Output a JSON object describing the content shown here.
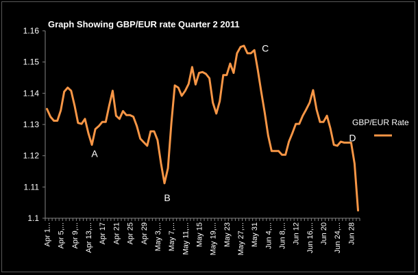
{
  "chart_data": {
    "type": "line",
    "title": "Graph Showing GBP/EUR rate Quarter 2 2011",
    "xlabel": "",
    "ylabel": "",
    "ylim": [
      1.1,
      1.16
    ],
    "yticks": [
      "1.1",
      "1.11",
      "1.12",
      "1.13",
      "1.14",
      "1.15",
      "1.16"
    ],
    "x_tick_labels": [
      "Apr 1...",
      "Apr 5,...",
      "Apr 9,...",
      "Apr 13,...",
      "Apr 17",
      "Apr 21",
      "Apr 25",
      "Apr 29",
      "May 3,...",
      "May 7,...",
      "May 11,...",
      "May 15",
      "May 19,...",
      "May 23",
      "May 27,...",
      "May 31",
      "Jun 4,...",
      "Jun 8,...",
      "Jun 12",
      "Jun 16,...",
      "Jun 20",
      "Jun 24,...",
      "Jun 28"
    ],
    "legend_position": "right",
    "grid": false,
    "series": [
      {
        "name": "GBP/EUR Rate",
        "color": "#F79646",
        "values": [
          1.135,
          1.1325,
          1.1312,
          1.1312,
          1.1345,
          1.1405,
          1.1418,
          1.1408,
          1.136,
          1.1305,
          1.1302,
          1.1318,
          1.1272,
          1.1235,
          1.1285,
          1.1295,
          1.1308,
          1.1308,
          1.136,
          1.1408,
          1.1328,
          1.1318,
          1.1343,
          1.133,
          1.133,
          1.1325,
          1.1295,
          1.1255,
          1.1243,
          1.1232,
          1.1278,
          1.1278,
          1.125,
          1.1175,
          1.1112,
          1.116,
          1.1305,
          1.1425,
          1.1418,
          1.1392,
          1.1408,
          1.143,
          1.1484,
          1.1428,
          1.1465,
          1.1468,
          1.1462,
          1.1448,
          1.137,
          1.1335,
          1.1375,
          1.1458,
          1.1458,
          1.1495,
          1.1465,
          1.1528,
          1.1548,
          1.1552,
          1.1528,
          1.1528,
          1.1538,
          1.1475,
          1.1405,
          1.1338,
          1.1265,
          1.1215,
          1.1215,
          1.1215,
          1.1203,
          1.1203,
          1.1245,
          1.1272,
          1.1302,
          1.1302,
          1.1328,
          1.1348,
          1.137,
          1.141,
          1.1348,
          1.1308,
          1.1308,
          1.1328,
          1.1288,
          1.1235,
          1.1232,
          1.1245,
          1.1242,
          1.1242,
          1.1242,
          1.1175,
          1.1025
        ]
      }
    ],
    "annotations": [
      {
        "text": "A",
        "index": 13
      },
      {
        "text": "B",
        "index": 34
      },
      {
        "text": "C",
        "index": 60
      },
      {
        "text": "D",
        "index": 88
      }
    ]
  }
}
